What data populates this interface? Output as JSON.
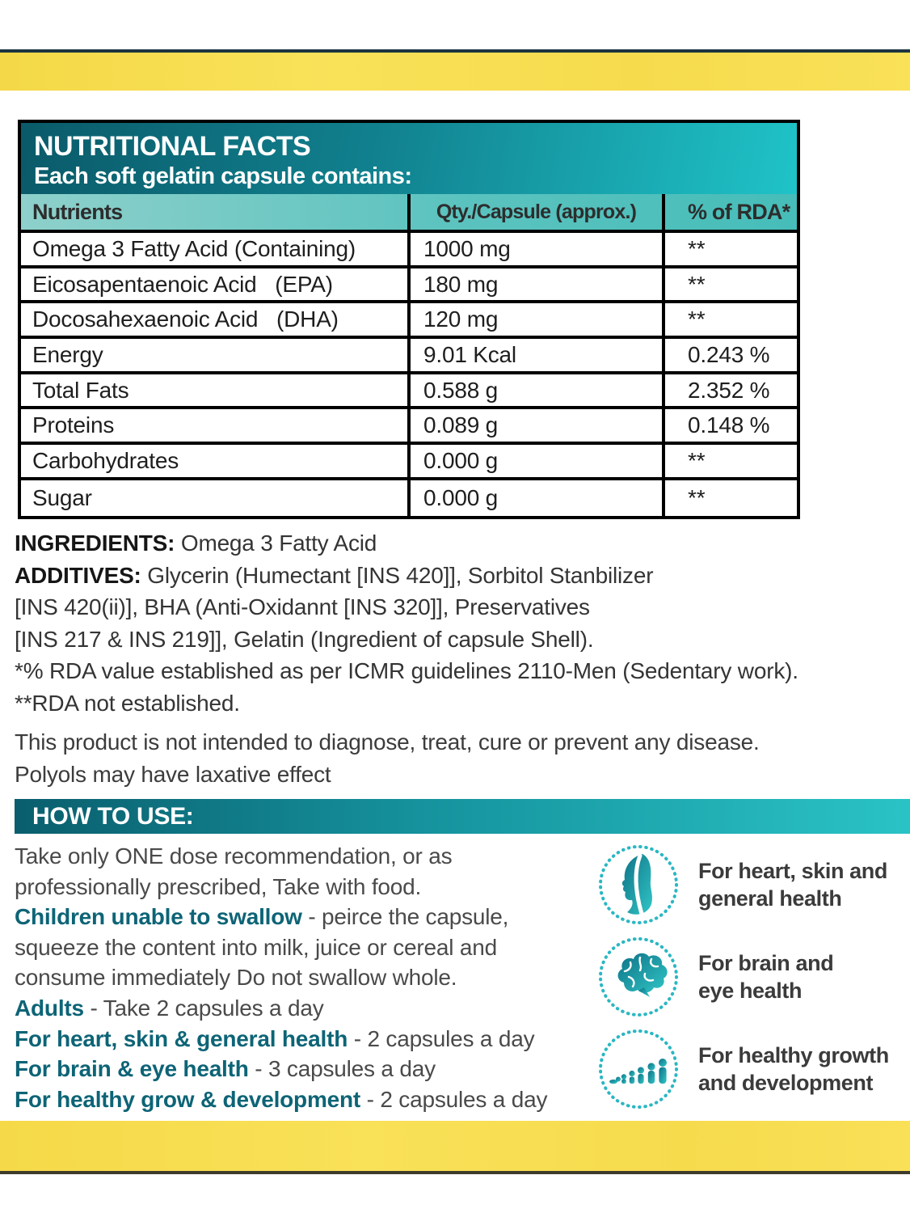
{
  "colors": {
    "teal_dark": "#0a5a69",
    "teal_bright": "#1fc3c8",
    "table_header_teal": "#46bdb9",
    "yellow_band": "#f7dc4e",
    "teal_text": "#0d6476",
    "dot_circle_teal": "#2ab7c3"
  },
  "nutrition_table": {
    "title": "NUTRITIONAL FACTS",
    "subtitle": "Each soft gelatin capsule contains:",
    "columns": [
      "Nutrients",
      "Qty./Capsule (approx.)",
      "% of RDA*"
    ],
    "rows": [
      {
        "nutrient": "Omega 3 Fatty Acid (Containing)",
        "qty": "1000 mg",
        "rda": "**"
      },
      {
        "nutrient": "Eicosapentaenoic Acid   (EPA)",
        "qty": "180 mg",
        "rda": "**"
      },
      {
        "nutrient": "Docosahexaenoic Acid   (DHA)",
        "qty": "120 mg",
        "rda": "**"
      },
      {
        "nutrient": "Energy",
        "qty": "9.01 Kcal",
        "rda": "0.243 %"
      },
      {
        "nutrient": "Total Fats",
        "qty": "0.588 g",
        "rda": "2.352 %"
      },
      {
        "nutrient": "Proteins",
        "qty": "0.089 g",
        "rda": "0.148 %"
      },
      {
        "nutrient": "Carbohydrates",
        "qty": "0.000 g",
        "rda": "**"
      },
      {
        "nutrient": "Sugar",
        "qty": "0.000 g",
        "rda": "**"
      }
    ]
  },
  "ingredients": {
    "lines": [
      {
        "bold": "INGREDIENTS:",
        "text": " Omega 3 Fatty Acid"
      },
      {
        "bold": "ADDITIVES:",
        "text": " Glycerin (Humectant [INS 420]], Sorbitol Stanbilizer"
      },
      {
        "bold": "",
        "text": "[INS 420(ii)], BHA (Anti-Oxidannt [INS 320]], Preservatives"
      },
      {
        "bold": "",
        "text": "[INS 217 & INS 219]], Gelatin (Ingredient of capsule Shell)."
      },
      {
        "bold": "",
        "text": "*% RDA value established as per ICMR guidelines 2110-Men (Sedentary work)."
      },
      {
        "bold": "",
        "text": "**RDA not established."
      }
    ]
  },
  "disclaimer": {
    "lines": [
      "This product is not intended to diagnose, treat, cure or prevent any disease.",
      "Polyols may have laxative effect"
    ]
  },
  "how_to_use": {
    "title": "HOW TO USE:"
  },
  "usage": {
    "lines": [
      {
        "bold": "",
        "text": "Take only ONE dose recommendation, or as"
      },
      {
        "bold": "",
        "text": "professionally prescribed, Take with food."
      },
      {
        "bold": "Children unable to swallow",
        "text": " - peirce the capsule,"
      },
      {
        "bold": "",
        "text": "squeeze the content into milk, juice or cereal and"
      },
      {
        "bold": "",
        "text": "consume immediately Do not swallow whole."
      },
      {
        "bold": "Adults",
        "text": " - Take 2 capsules a day"
      },
      {
        "bold": "For heart, skin & general health",
        "text": " - 2 capsules a day"
      },
      {
        "bold": "For brain & eye health",
        "text": " - 3 capsules a day"
      },
      {
        "bold": "For healthy grow & development",
        "text": " - 2 capsules a day"
      }
    ]
  },
  "benefits": {
    "items": [
      {
        "icon": "face-icon",
        "lines": [
          "For heart, skin and",
          "general health"
        ]
      },
      {
        "icon": "brain-icon",
        "lines": [
          "For brain and",
          "eye health"
        ]
      },
      {
        "icon": "growth-icon",
        "lines": [
          "For healthy growth",
          "and development"
        ]
      }
    ]
  }
}
